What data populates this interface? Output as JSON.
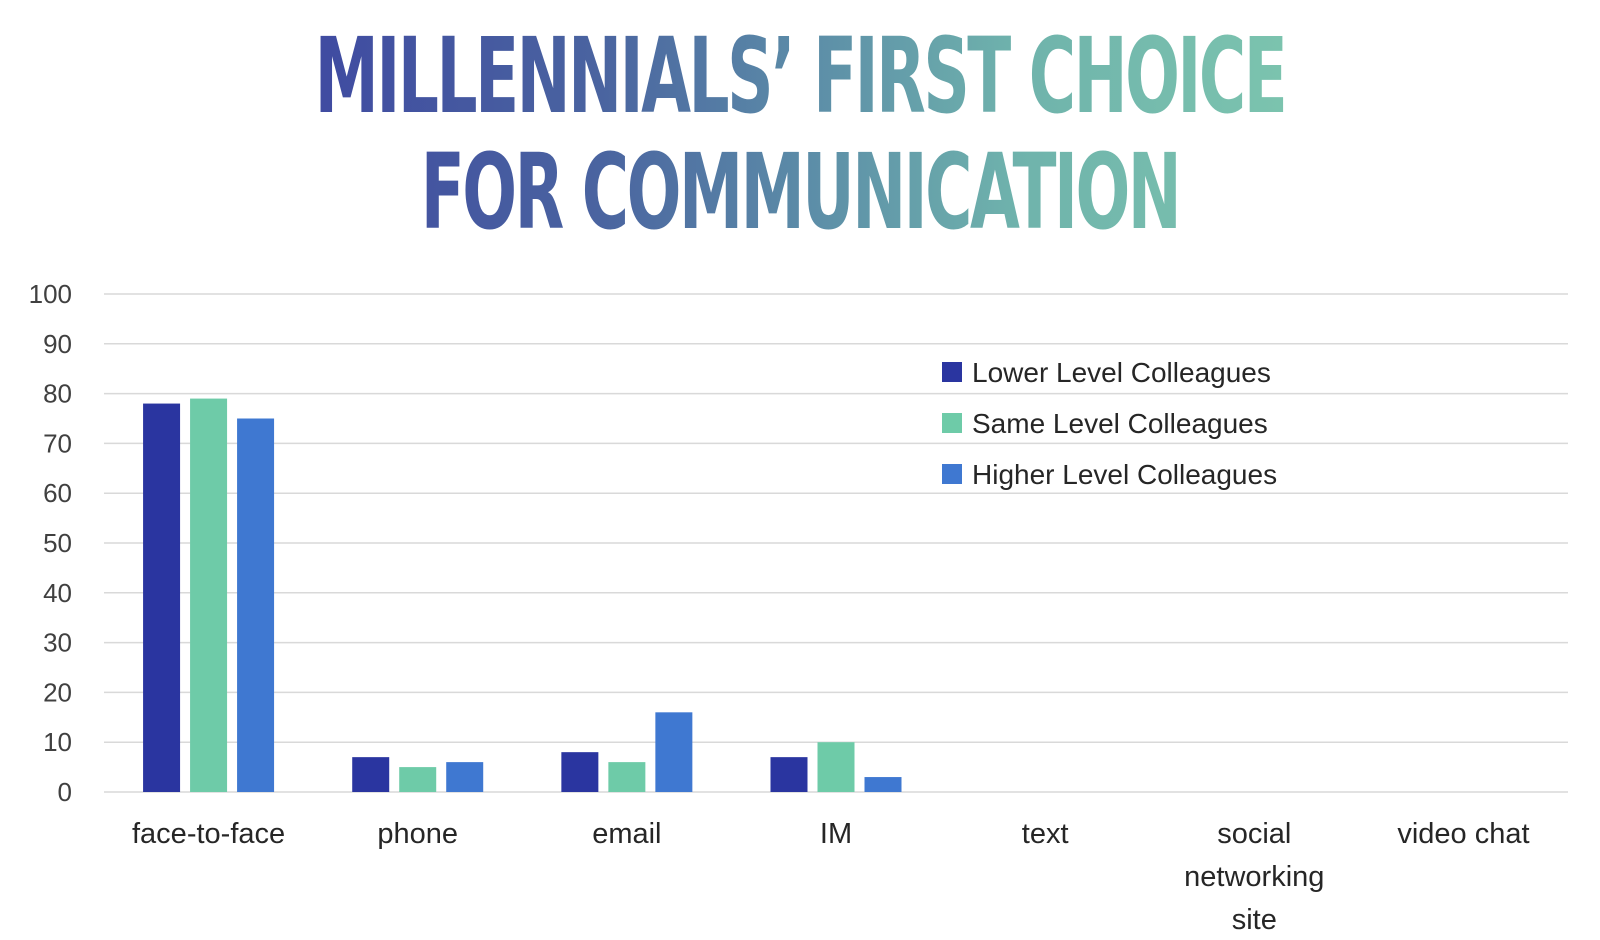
{
  "title": {
    "line1": "MILLENNIALS’ FIRST CHOICE",
    "line2": "FOR COMMUNICATION"
  },
  "chart_data": {
    "type": "bar",
    "title": "MILLENNIALS’ FIRST CHOICE FOR COMMUNICATION",
    "categories": [
      [
        "face-to-face"
      ],
      [
        "phone"
      ],
      [
        "email"
      ],
      [
        "IM"
      ],
      [
        "text"
      ],
      [
        "social",
        "networking",
        "site"
      ],
      [
        "video chat"
      ]
    ],
    "series": [
      {
        "name": "Lower Level Colleagues",
        "color": "#2a35a0",
        "values": [
          78,
          7,
          8,
          7,
          0,
          0,
          0
        ]
      },
      {
        "name": "Same Level Colleagues",
        "color": "#6ecba8",
        "values": [
          79,
          5,
          6,
          10,
          0,
          0,
          0
        ]
      },
      {
        "name": "Higher Level Colleagues",
        "color": "#3f78d1",
        "values": [
          75,
          6,
          16,
          3,
          0,
          0,
          0
        ]
      }
    ],
    "ylim": [
      0,
      100
    ],
    "yticks": [
      "0",
      "10",
      "20",
      "30",
      "40",
      "50",
      "60",
      "70",
      "80",
      "90",
      "100"
    ],
    "grid": true,
    "legend_position": "top-right"
  }
}
